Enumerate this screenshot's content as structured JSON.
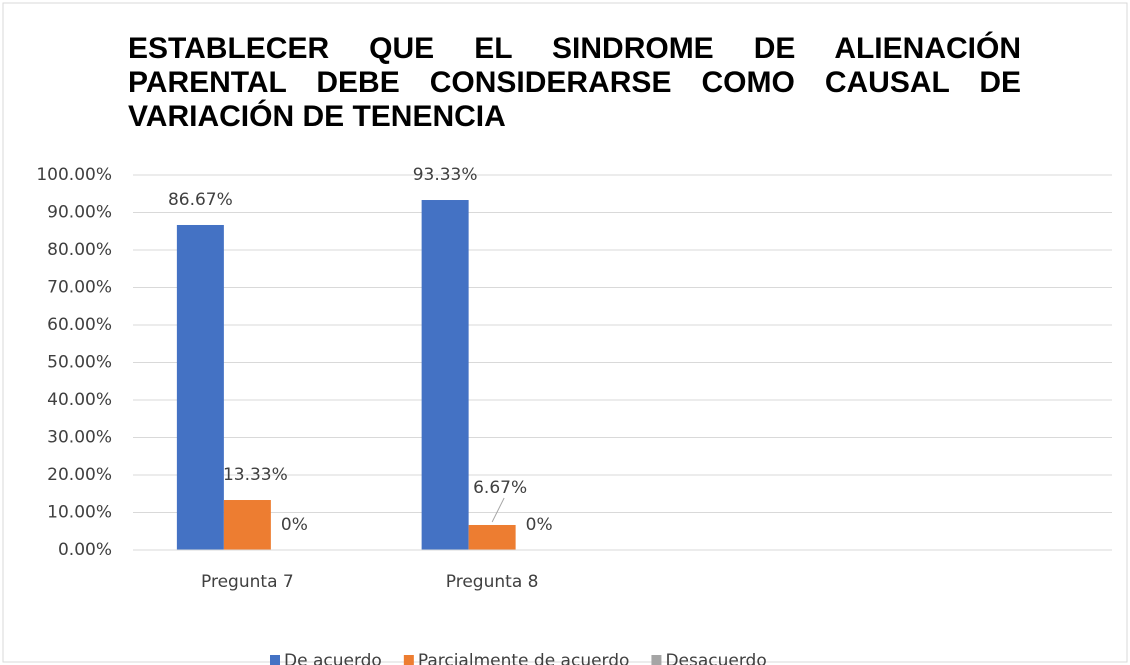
{
  "chart_data": {
    "type": "bar",
    "title": "ESTABLECER QUE EL SINDROME DE ALIENACIÓN PARENTAL DEBE CONSIDERARSE COMO CAUSAL DE VARIACIÓN DE TENENCIA",
    "categories": [
      "Pregunta 7",
      "Pregunta 8",
      null,
      null
    ],
    "series": [
      {
        "name": "De acuerdo",
        "color": "#4472c4",
        "values": [
          86.67,
          93.33,
          null,
          null
        ],
        "value_labels": [
          "86.67%",
          "93.33%",
          null,
          null
        ]
      },
      {
        "name": "Parcialmente de acuerdo",
        "color": "#ed7d31",
        "values": [
          13.33,
          6.67,
          null,
          null
        ],
        "value_labels": [
          "13.33%",
          "6.67%",
          null,
          null
        ]
      },
      {
        "name": "Desacuerdo",
        "color": "#a5a5a5",
        "values": [
          0,
          0,
          null,
          null
        ],
        "value_labels": [
          "0%",
          "0%",
          null,
          null
        ]
      }
    ],
    "ylim": [
      0,
      100
    ],
    "yticks": [
      {
        "value": 0,
        "label": "0.00%"
      },
      {
        "value": 10,
        "label": "10.00%"
      },
      {
        "value": 20,
        "label": "20.00%"
      },
      {
        "value": 30,
        "label": "30.00%"
      },
      {
        "value": 40,
        "label": "40.00%"
      },
      {
        "value": 50,
        "label": "50.00%"
      },
      {
        "value": 60,
        "label": "60.00%"
      },
      {
        "value": 70,
        "label": "70.00%"
      },
      {
        "value": 80,
        "label": "80.00%"
      },
      {
        "value": 90,
        "label": "90.00%"
      },
      {
        "value": 100,
        "label": "100.00%"
      }
    ],
    "grid": true,
    "legend": "bottom"
  }
}
